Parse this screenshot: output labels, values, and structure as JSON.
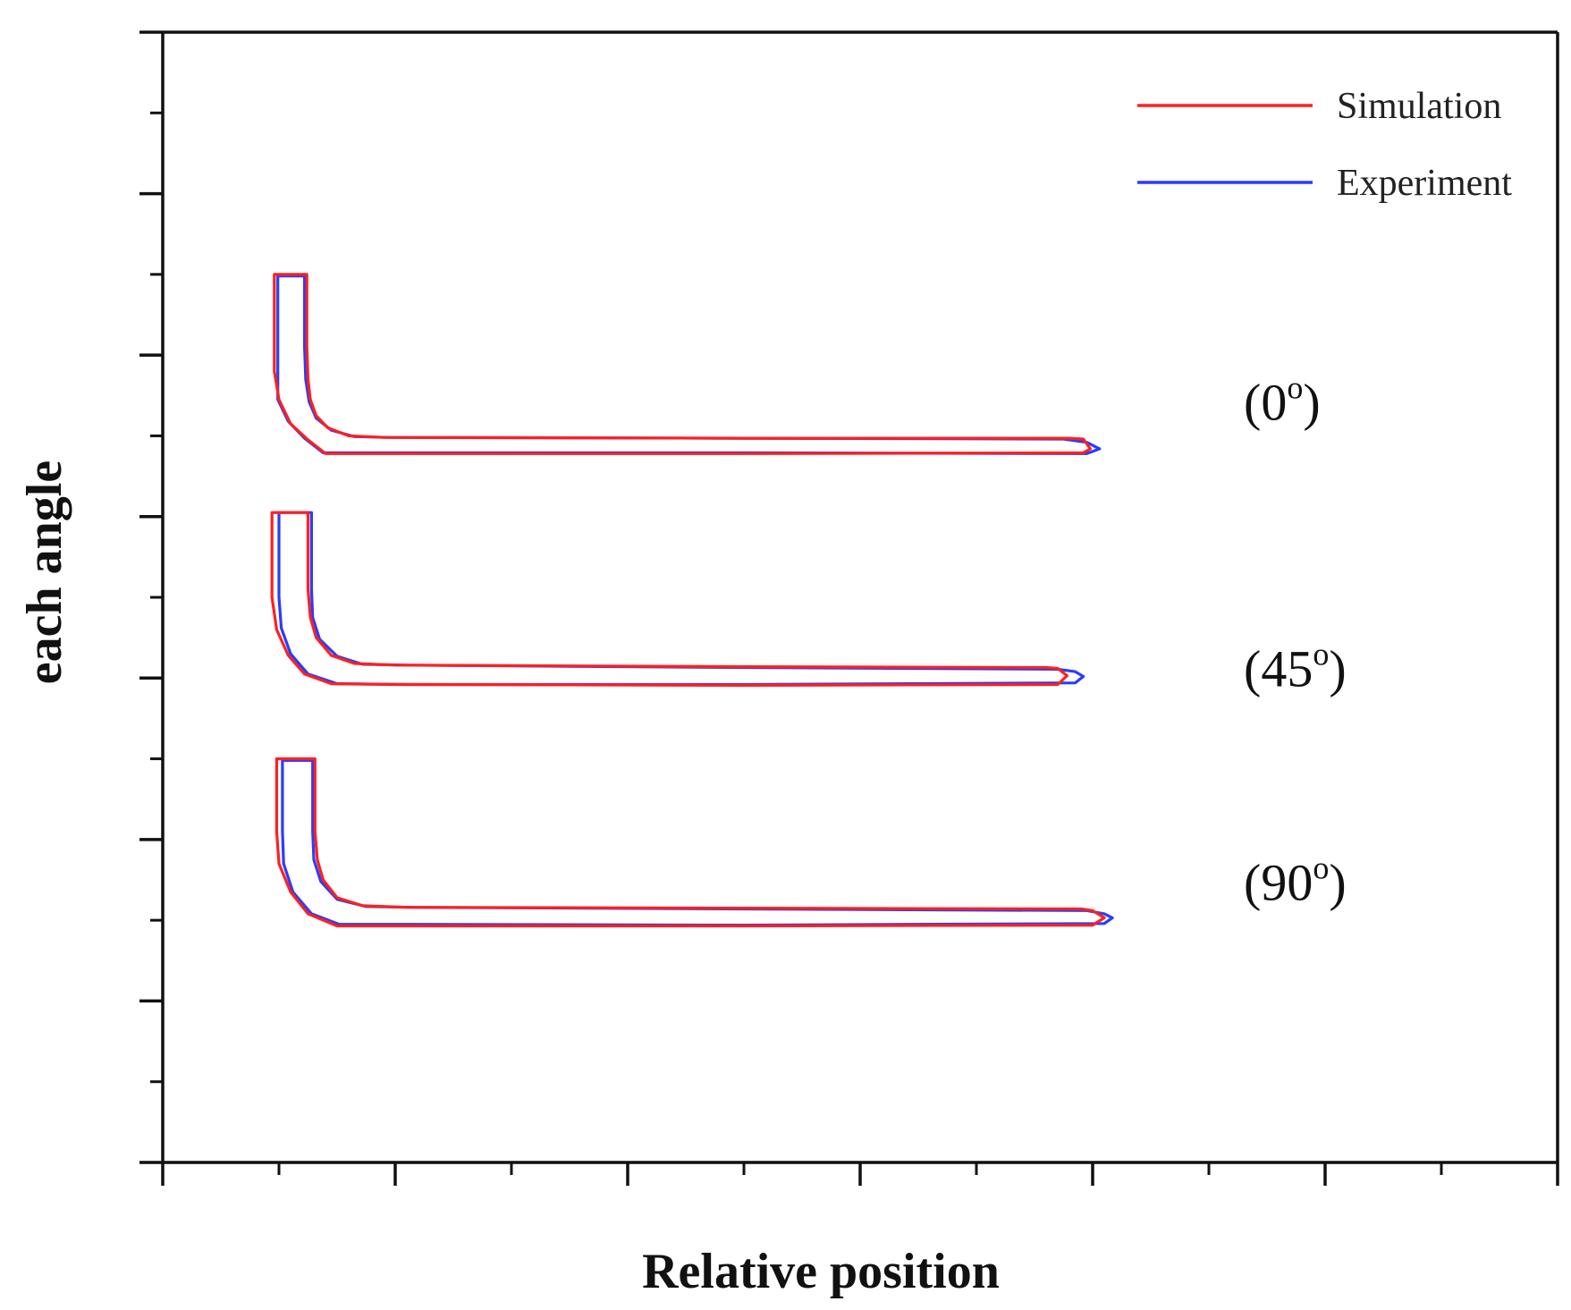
{
  "chart_data": {
    "type": "line",
    "title": "",
    "xlabel": "Relative position",
    "ylabel": "each angle",
    "xlim": [
      0,
      12
    ],
    "ylim": [
      0,
      14
    ],
    "x_major_ticks": [
      0,
      2,
      4,
      6,
      8,
      10,
      12
    ],
    "x_minor_ticks": [
      1,
      3,
      5,
      7,
      9,
      11
    ],
    "y_major_ticks": [
      0,
      2,
      4,
      6,
      8,
      10,
      12,
      14
    ],
    "y_minor_ticks": [
      1,
      3,
      5,
      7,
      9,
      11,
      13
    ],
    "show_tick_labels": false,
    "grid": false,
    "legend": {
      "position": "top-right",
      "entries": [
        {
          "name": "Simulation",
          "color": "#ff2020"
        },
        {
          "name": "Experiment",
          "color": "#2a3cff"
        }
      ]
    },
    "profiles": [
      {
        "annotation_base": "(0",
        "annotation_sup": "o",
        "annotation_close": ")",
        "annotation_pos": [
          9.3,
          9.2
        ],
        "series": [
          {
            "name": "Simulation",
            "color": "#ff2020",
            "points": [
              [
                0.96,
                11.0
              ],
              [
                1.24,
                11.0
              ],
              [
                1.24,
                10.1
              ],
              [
                1.25,
                9.7
              ],
              [
                1.27,
                9.45
              ],
              [
                1.32,
                9.25
              ],
              [
                1.42,
                9.1
              ],
              [
                1.6,
                9.0
              ],
              [
                1.9,
                8.98
              ],
              [
                5.0,
                8.97
              ],
              [
                7.8,
                8.97
              ],
              [
                7.92,
                8.96
              ],
              [
                7.98,
                8.84
              ],
              [
                7.92,
                8.79
              ],
              [
                5.0,
                8.78
              ],
              [
                1.9,
                8.78
              ],
              [
                1.4,
                8.78
              ],
              [
                1.25,
                8.95
              ],
              [
                1.1,
                9.15
              ],
              [
                1.0,
                9.45
              ],
              [
                0.96,
                9.8
              ],
              [
                0.96,
                11.0
              ]
            ]
          },
          {
            "name": "Experiment",
            "color": "#2a3cff",
            "points": [
              [
                0.99,
                10.98
              ],
              [
                1.22,
                10.98
              ],
              [
                1.22,
                10.1
              ],
              [
                1.23,
                9.7
              ],
              [
                1.26,
                9.42
              ],
              [
                1.32,
                9.22
              ],
              [
                1.45,
                9.07
              ],
              [
                1.65,
                8.99
              ],
              [
                1.95,
                8.98
              ],
              [
                5.0,
                8.97
              ],
              [
                7.75,
                8.96
              ],
              [
                7.95,
                8.92
              ],
              [
                8.06,
                8.84
              ],
              [
                7.95,
                8.78
              ],
              [
                5.0,
                8.79
              ],
              [
                1.95,
                8.79
              ],
              [
                1.38,
                8.79
              ],
              [
                1.22,
                8.97
              ],
              [
                1.08,
                9.18
              ],
              [
                0.99,
                9.45
              ],
              [
                0.99,
                9.85
              ],
              [
                0.99,
                10.98
              ]
            ]
          }
        ]
      },
      {
        "annotation_base": "(45",
        "annotation_sup": "o",
        "annotation_close": ")",
        "annotation_pos": [
          9.3,
          5.9
        ],
        "series": [
          {
            "name": "Simulation",
            "color": "#ff2020",
            "points": [
              [
                0.94,
                8.05
              ],
              [
                1.25,
                8.05
              ],
              [
                1.25,
                7.1
              ],
              [
                1.27,
                6.75
              ],
              [
                1.32,
                6.5
              ],
              [
                1.45,
                6.28
              ],
              [
                1.65,
                6.18
              ],
              [
                2.0,
                6.16
              ],
              [
                5.0,
                6.14
              ],
              [
                7.6,
                6.13
              ],
              [
                7.7,
                6.12
              ],
              [
                7.78,
                6.03
              ],
              [
                7.7,
                5.92
              ],
              [
                5.0,
                5.91
              ],
              [
                2.0,
                5.92
              ],
              [
                1.45,
                5.93
              ],
              [
                1.22,
                6.05
              ],
              [
                1.08,
                6.28
              ],
              [
                0.98,
                6.6
              ],
              [
                0.94,
                7.0
              ],
              [
                0.94,
                8.05
              ]
            ]
          },
          {
            "name": "Experiment",
            "color": "#2a3cff",
            "points": [
              [
                1.0,
                8.05
              ],
              [
                1.28,
                8.05
              ],
              [
                1.28,
                7.1
              ],
              [
                1.29,
                6.75
              ],
              [
                1.35,
                6.48
              ],
              [
                1.5,
                6.27
              ],
              [
                1.72,
                6.17
              ],
              [
                2.1,
                6.16
              ],
              [
                5.0,
                6.13
              ],
              [
                7.7,
                6.11
              ],
              [
                7.85,
                6.08
              ],
              [
                7.92,
                6.02
              ],
              [
                7.85,
                5.94
              ],
              [
                5.0,
                5.92
              ],
              [
                2.1,
                5.92
              ],
              [
                1.5,
                5.93
              ],
              [
                1.25,
                6.05
              ],
              [
                1.1,
                6.3
              ],
              [
                1.02,
                6.62
              ],
              [
                1.0,
                7.0
              ],
              [
                1.0,
                8.05
              ]
            ]
          }
        ]
      },
      {
        "annotation_base": "(90",
        "annotation_sup": "o",
        "annotation_close": ")",
        "annotation_pos": [
          9.3,
          3.25
        ],
        "series": [
          {
            "name": "Simulation",
            "color": "#ff2020",
            "points": [
              [
                0.98,
                5.0
              ],
              [
                1.31,
                5.0
              ],
              [
                1.31,
                4.1
              ],
              [
                1.33,
                3.75
              ],
              [
                1.38,
                3.5
              ],
              [
                1.5,
                3.28
              ],
              [
                1.72,
                3.18
              ],
              [
                2.1,
                3.16
              ],
              [
                5.0,
                3.15
              ],
              [
                7.9,
                3.14
              ],
              [
                8.0,
                3.12
              ],
              [
                8.1,
                3.03
              ],
              [
                8.0,
                2.94
              ],
              [
                5.0,
                2.93
              ],
              [
                2.1,
                2.93
              ],
              [
                1.5,
                2.93
              ],
              [
                1.25,
                3.08
              ],
              [
                1.1,
                3.35
              ],
              [
                1.0,
                3.7
              ],
              [
                0.98,
                4.1
              ],
              [
                0.98,
                5.0
              ]
            ]
          },
          {
            "name": "Experiment",
            "color": "#2a3cff",
            "points": [
              [
                1.03,
                4.98
              ],
              [
                1.29,
                4.98
              ],
              [
                1.29,
                4.1
              ],
              [
                1.3,
                3.75
              ],
              [
                1.36,
                3.48
              ],
              [
                1.5,
                3.26
              ],
              [
                1.75,
                3.17
              ],
              [
                2.15,
                3.16
              ],
              [
                5.0,
                3.14
              ],
              [
                7.95,
                3.12
              ],
              [
                8.1,
                3.08
              ],
              [
                8.17,
                3.03
              ],
              [
                8.1,
                2.96
              ],
              [
                5.0,
                2.94
              ],
              [
                2.15,
                2.95
              ],
              [
                1.52,
                2.95
              ],
              [
                1.28,
                3.08
              ],
              [
                1.12,
                3.35
              ],
              [
                1.04,
                3.7
              ],
              [
                1.03,
                4.1
              ],
              [
                1.03,
                4.98
              ]
            ]
          }
        ]
      }
    ]
  }
}
